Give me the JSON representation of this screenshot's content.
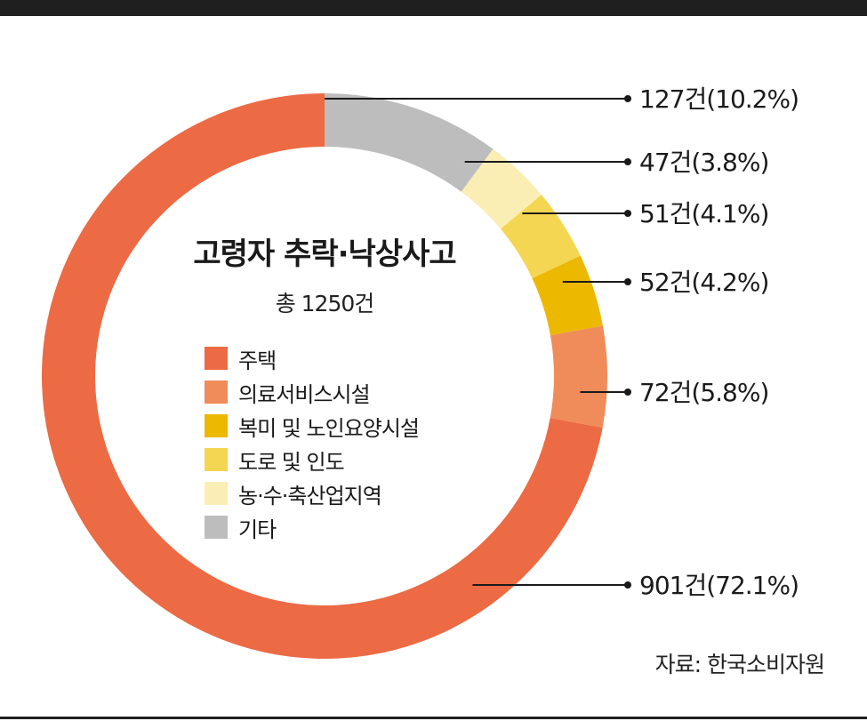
{
  "chart_data": {
    "type": "pie",
    "title": "고령자 추락·낙상사고",
    "subtitle": "총 1250건",
    "categories": [
      "주택",
      "의료서비스시설",
      "복미 및 노인요양시설",
      "도로 및 인도",
      "농·수·축산업지역",
      "기타"
    ],
    "counts": [
      901,
      72,
      52,
      51,
      47,
      127
    ],
    "percents": [
      72.1,
      5.8,
      4.2,
      4.1,
      3.8,
      10.2
    ],
    "value_labels": [
      "901건(72.1%)",
      "72건(5.8%)",
      "52건(4.2%)",
      "51건(4.1%)",
      "47건(3.8%)",
      "127건(10.2%)"
    ],
    "colors": [
      "#ec6a44",
      "#f08c5a",
      "#ecb800",
      "#f4d652",
      "#faeeb4",
      "#bdbdbd"
    ],
    "legend_position": "center",
    "source": "자료: 한국소비자원"
  }
}
